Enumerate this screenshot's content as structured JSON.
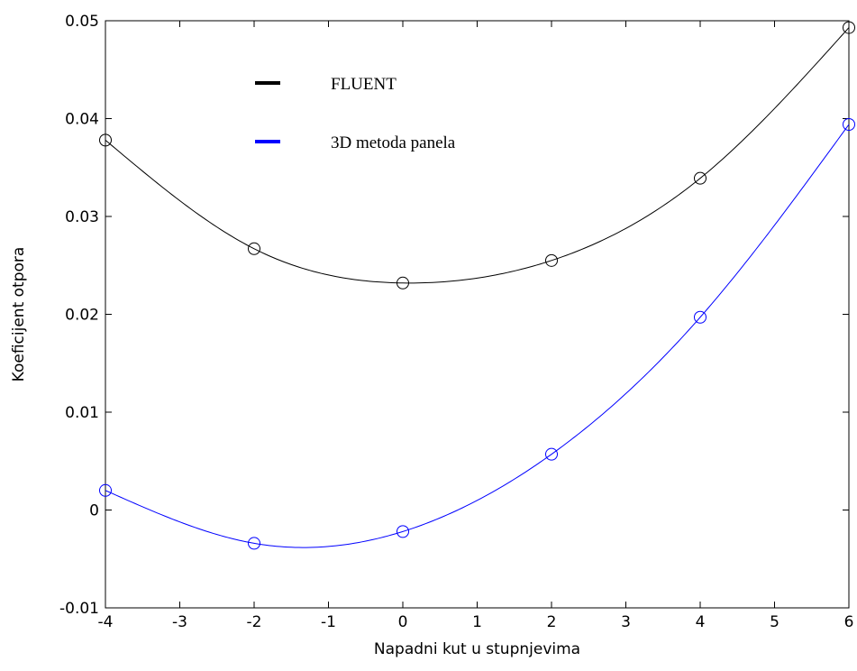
{
  "chart_data": {
    "type": "line",
    "title": "",
    "xlabel": "Napadni kut u stupnjevima",
    "ylabel": "Koeficijent otpora",
    "xlim": [
      -4,
      6
    ],
    "ylim": [
      -0.01,
      0.05
    ],
    "xticks": [
      -4,
      -3,
      -2,
      -1,
      0,
      1,
      2,
      3,
      4,
      5,
      6
    ],
    "xtick_labels": [
      "-4",
      "-3",
      "-2",
      "-1",
      "0",
      "1",
      "2",
      "3",
      "4",
      "5",
      "6"
    ],
    "yticks": [
      -0.01,
      0,
      0.01,
      0.02,
      0.03,
      0.04,
      0.05
    ],
    "ytick_labels": [
      "-0.01",
      "0",
      "0.01",
      "0.02",
      "0.03",
      "0.04",
      "0.05"
    ],
    "grid": false,
    "legend_position": "top-left",
    "series": [
      {
        "name": "FLUENT",
        "color": "#000000",
        "x": [
          -4,
          -2,
          0,
          2,
          4,
          6
        ],
        "y": [
          0.0378,
          0.0267,
          0.0232,
          0.0255,
          0.0339,
          0.0493
        ],
        "marker": "circle"
      },
      {
        "name": "3D metoda panela",
        "color": "#0000ff",
        "x": [
          -4,
          -2,
          0,
          2,
          4,
          6
        ],
        "y": [
          0.002,
          -0.0034,
          -0.0022,
          0.0057,
          0.0197,
          0.0394
        ],
        "marker": "circle"
      }
    ]
  }
}
